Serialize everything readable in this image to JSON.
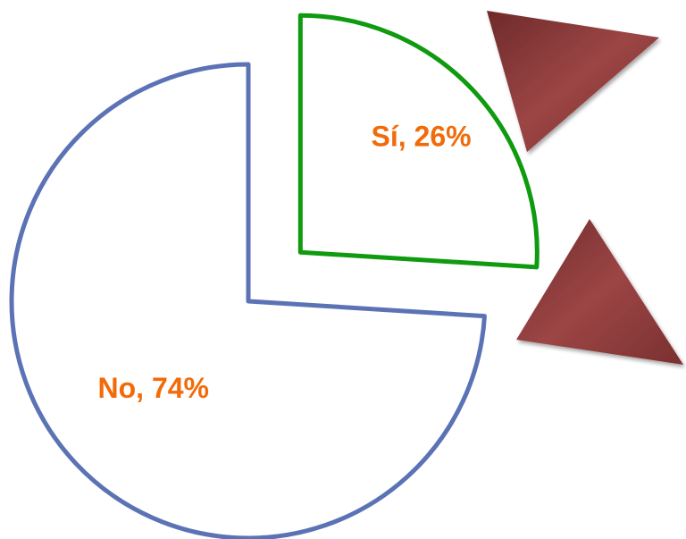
{
  "chart_data": {
    "type": "pie",
    "values": [
      26,
      74
    ],
    "value_labels": [
      "Sí, 26%",
      "No, 74%"
    ],
    "colors": [
      "#0f9a0f",
      "#5b73b5"
    ],
    "explode": [
      true,
      false
    ]
  }
}
